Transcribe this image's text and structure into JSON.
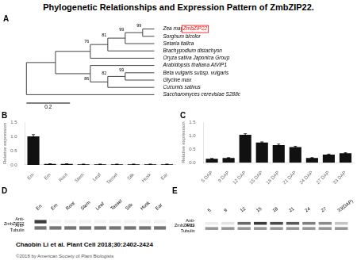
{
  "title": "Phylogenetic Relationships and Expression Pattern of ZmbZIP22.",
  "annotations": [
    "Chaobin Li et al. Plant Cell 2018;30:2402-2424",
    "©2018 by American Society of Plant Biologists"
  ],
  "chart_data": [
    {
      "type": "tree",
      "title": "A",
      "categories": [
        "Zea mays ",
        "Sorghum bicolor",
        "Setaria italica",
        "Brachypodium distachyon",
        "Oryza sativa Japonica Group",
        "Arabidopsis thaliana AtVIP1",
        "Beta vulgaris subsp. vulgaris",
        "Glycine max",
        "Cucumis sativus",
        "Saccharomyces cerevisiae S288c"
      ],
      "highlight_label": "ZmbZIP22",
      "node_labels": [
        99,
        99,
        81,
        76,
        86,
        82,
        99
      ],
      "scale_label": "0.2"
    },
    {
      "type": "bar",
      "title": "B",
      "categories": [
        "Em",
        "Em",
        "Root",
        "Stem",
        "Leaf",
        "Tassel",
        "Silk",
        "Husk",
        "Ear"
      ],
      "values": [
        1.0,
        0.03,
        0.03,
        0.02,
        0.02,
        0.02,
        0.02,
        0.02,
        0.02
      ],
      "errors": [
        0.06,
        0.005,
        0.005,
        0.005,
        0.005,
        0.005,
        0.005,
        0.005,
        0.005
      ],
      "ylabel": "Relative expression",
      "ylim": [
        0,
        1.5
      ],
      "yticks": [
        {
          "value": 0,
          "label": "0.0"
        },
        0.5,
        {
          "value": 1.0,
          "label": "1.0"
        },
        1.5
      ],
      "color": "#111111",
      "grid": false
    },
    {
      "type": "bar",
      "title": "C",
      "categories": [
        "5 DAP",
        "9 DAP",
        "12 DAP",
        "15 DAP",
        "18 DAP",
        "21 DAP",
        "24 DAP",
        "27 DAP",
        "33 DAP"
      ],
      "values": [
        0.15,
        0.18,
        1.03,
        0.75,
        0.65,
        0.58,
        0.18,
        0.3,
        0.35
      ],
      "errors": [
        0.01,
        0.01,
        0.04,
        0.02,
        0.04,
        0.03,
        0.01,
        0.02,
        0.02
      ],
      "ylabel": "Relative expression",
      "ylim": [
        0,
        1.5
      ],
      "yticks": [
        {
          "value": 0,
          "label": "0.0"
        },
        0.5,
        {
          "value": 1.0,
          "label": "1.0"
        },
        1.5
      ],
      "color": "#111111",
      "grid": false
    },
    {
      "type": "heatmap",
      "title": "D",
      "x": [
        "En",
        "Em",
        "Root",
        "Stem",
        "Leaf",
        "Tassel",
        "Silk",
        "Husk",
        "Ear"
      ],
      "y": [
        "Anti-\nZmbZIP22",
        "Anti-\nTubulin"
      ],
      "cells": [
        [
          0.85,
          0.05,
          0.05,
          0.05,
          0.05,
          0.05,
          0.05,
          0.05,
          0.05
        ],
        [
          0.6,
          0.6,
          0.6,
          0.6,
          0.6,
          0.6,
          0.6,
          0.6,
          0.6
        ]
      ]
    },
    {
      "type": "heatmap",
      "title": "E",
      "x": [
        "5",
        "9",
        "12",
        "15",
        "18",
        "21",
        "24",
        "27",
        "33(DAP)"
      ],
      "y": [
        "Anti-\nZmbZIP22",
        "Anti-\nTubulin"
      ],
      "cells": [
        [
          0.08,
          0.12,
          0.65,
          0.85,
          0.78,
          0.72,
          0.55,
          0.5,
          0.25
        ],
        [
          0.45,
          0.45,
          0.45,
          0.45,
          0.45,
          0.45,
          0.45,
          0.45,
          0.45
        ]
      ]
    }
  ]
}
